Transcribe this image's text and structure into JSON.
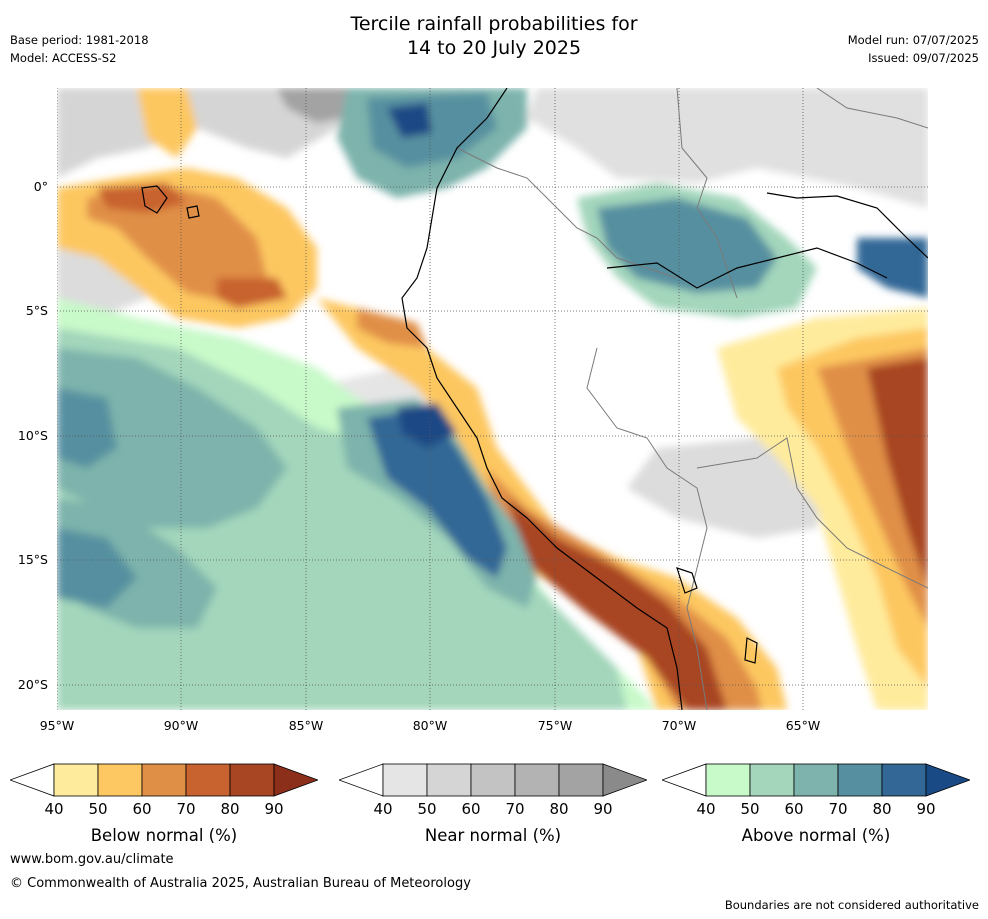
{
  "title": {
    "line1": "Tercile rainfall probabilities for",
    "line2": "14 to 20 July 2025"
  },
  "meta": {
    "base_period": "Base period: 1981-2018",
    "model": "Model: ACCESS-S2",
    "model_run": "Model run: 07/07/2025",
    "issued": "Issued: 09/07/2025"
  },
  "map": {
    "lat_labels": [
      "0°",
      "5°S",
      "10°S",
      "15°S",
      "20°S"
    ],
    "lon_labels": [
      "95°W",
      "90°W",
      "85°W",
      "80°W",
      "75°W",
      "70°W",
      "65°W"
    ]
  },
  "colorbars": [
    {
      "label": "Below normal (%)",
      "ticks": [
        "40",
        "50",
        "60",
        "70",
        "80",
        "90"
      ],
      "colors": [
        "#ffffff",
        "#ffeb9c",
        "#fdc761",
        "#e08f46",
        "#c8622f",
        "#a84523",
        "#8b2f1b"
      ]
    },
    {
      "label": "Near normal (%)",
      "ticks": [
        "40",
        "50",
        "60",
        "70",
        "80",
        "90"
      ],
      "colors": [
        "#ffffff",
        "#e5e5e5",
        "#d5d5d5",
        "#c3c3c3",
        "#b3b3b3",
        "#a3a3a3",
        "#8a8a8a"
      ]
    },
    {
      "label": "Above normal (%)",
      "ticks": [
        "40",
        "50",
        "60",
        "70",
        "80",
        "90"
      ],
      "colors": [
        "#ffffff",
        "#c8f9c9",
        "#a3d6bb",
        "#7db3ac",
        "#5690a0",
        "#336796",
        "#1a4a85"
      ]
    }
  ],
  "footer": {
    "website": "www.bom.gov.au/climate",
    "copyright": "© Commonwealth of Australia 2025, Australian Bureau of Meteorology",
    "disclaimer": "Boundaries are not considered authoritative"
  }
}
